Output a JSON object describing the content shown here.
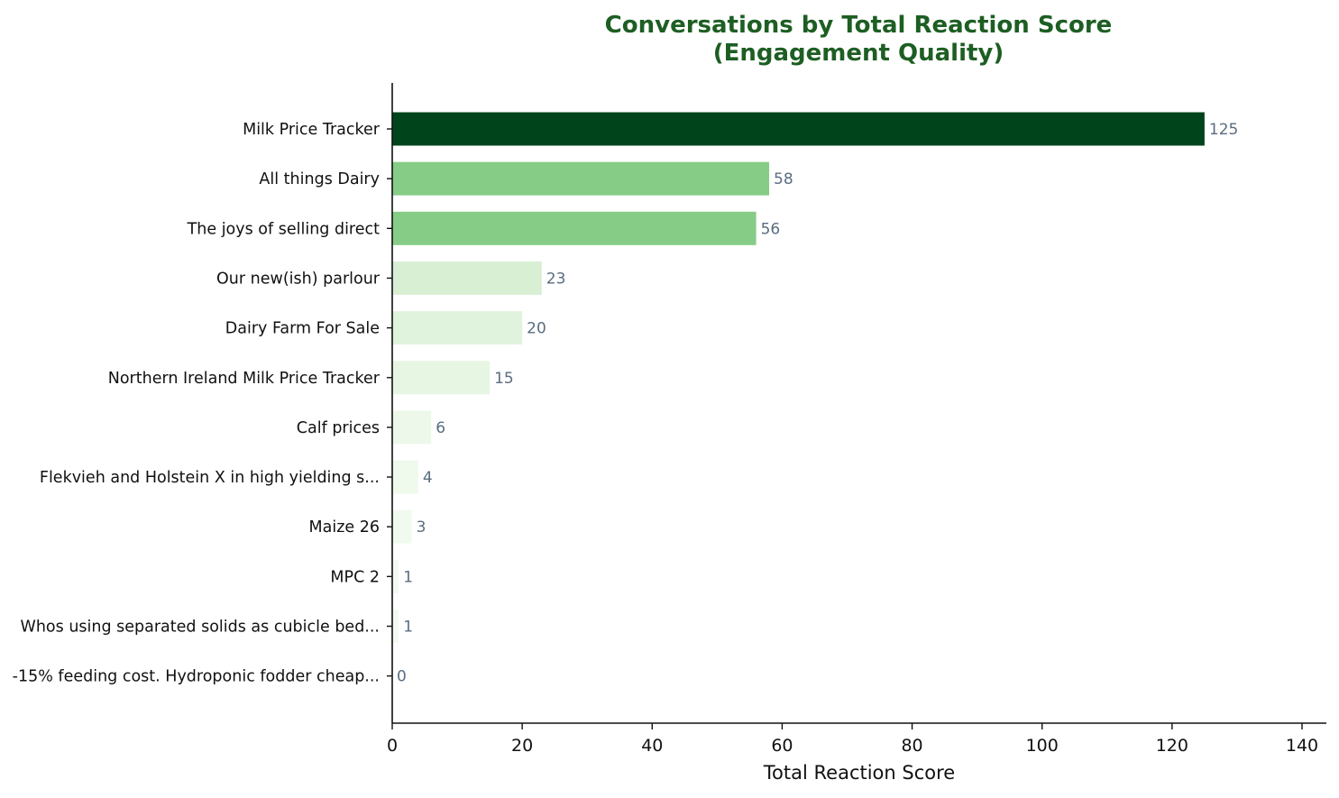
{
  "chart_data": {
    "type": "bar",
    "orientation": "horizontal",
    "title": "Conversations by Total Reaction Score",
    "subtitle": "(Engagement Quality)",
    "xlabel": "Total Reaction Score",
    "ylabel": "",
    "xlim": [
      0,
      140
    ],
    "xticks": [
      0,
      20,
      40,
      60,
      80,
      100,
      120,
      140
    ],
    "grid": false,
    "legend": "none",
    "categories": [
      "Milk Price Tracker",
      "All things Dairy",
      "The joys of selling direct",
      "Our new(ish) parlour",
      "Dairy Farm For Sale",
      "Northern Ireland Milk Price Tracker",
      "Calf prices",
      "Flekvieh and Holstein X in high yielding s...",
      "Maize 26",
      "MPC 2",
      "Whos using separated solids as cubicle bed...",
      "-15% feeding cost. Hydroponic fodder cheap..."
    ],
    "values": [
      125,
      58,
      56,
      23,
      20,
      15,
      6,
      4,
      3,
      1,
      1,
      0
    ],
    "colors": [
      "#00441b",
      "#86cc86",
      "#86cc86",
      "#d8efd4",
      "#e0f3dc",
      "#e7f6e3",
      "#edf8ea",
      "#eff9ec",
      "#f1faee",
      "#f3fbf0",
      "#f3fbf0",
      "#f7fcf5"
    ],
    "title_color": "#1d5e23",
    "value_label_color": "#5a6d80"
  }
}
